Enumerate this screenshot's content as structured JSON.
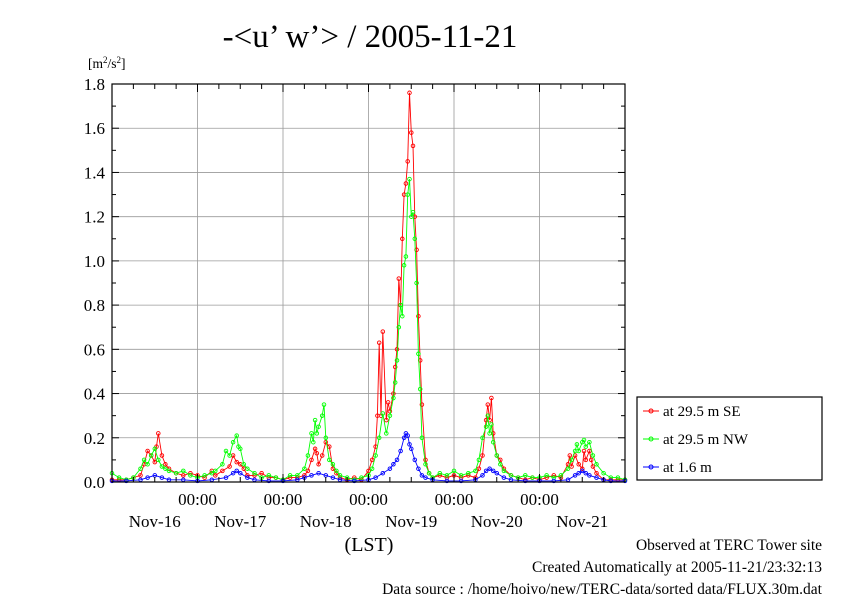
{
  "chart_data": {
    "type": "line",
    "title": "-<u’ w’> / 2005-11-21",
    "ylabel_unit": {
      "prefix": "[m",
      "sup1": "2",
      "mid": "/s",
      "sup2": "2",
      "suffix": "]"
    },
    "xlabel": "(LST)",
    "ylim": [
      0,
      1.8
    ],
    "yticks": [
      "0.0",
      "0.2",
      "0.4",
      "0.6",
      "0.8",
      "1.0",
      "1.2",
      "1.4",
      "1.6",
      "1.8"
    ],
    "xlim_hours": [
      0,
      144
    ],
    "x_midnight_labels": [
      "00:00",
      "00:00",
      "00:00",
      "00:00",
      "00:00"
    ],
    "x_midnight_hours": [
      24,
      48,
      72,
      96,
      120
    ],
    "x_day_labels": [
      "Nov-16",
      "Nov-17",
      "Nov-18",
      "Nov-19",
      "Nov-20",
      "Nov-21"
    ],
    "x_day_hours": [
      12,
      36,
      60,
      84,
      108,
      132
    ],
    "grid": true,
    "legend_position": "right",
    "series": [
      {
        "name": "at 29.5 m SE",
        "color": "#ff0000",
        "points": [
          [
            0,
            0.01
          ],
          [
            2,
            0.01
          ],
          [
            4,
            0.01
          ],
          [
            6,
            0.02
          ],
          [
            8,
            0.03
          ],
          [
            9,
            0.08
          ],
          [
            10,
            0.14
          ],
          [
            11,
            0.12
          ],
          [
            12,
            0.09
          ],
          [
            12.5,
            0.16
          ],
          [
            13,
            0.22
          ],
          [
            14,
            0.12
          ],
          [
            15,
            0.08
          ],
          [
            16,
            0.06
          ],
          [
            18,
            0.04
          ],
          [
            20,
            0.03
          ],
          [
            22,
            0.04
          ],
          [
            24,
            0.03
          ],
          [
            26,
            0.02
          ],
          [
            28,
            0.05
          ],
          [
            29,
            0.03
          ],
          [
            31,
            0.05
          ],
          [
            33,
            0.07
          ],
          [
            34,
            0.12
          ],
          [
            35,
            0.09
          ],
          [
            36,
            0.08
          ],
          [
            37,
            0.06
          ],
          [
            38,
            0.03
          ],
          [
            40,
            0.03
          ],
          [
            42,
            0.04
          ],
          [
            44,
            0.02
          ],
          [
            46,
            0.02
          ],
          [
            48,
            0.01
          ],
          [
            50,
            0.02
          ],
          [
            52,
            0.02
          ],
          [
            54,
            0.03
          ],
          [
            55,
            0.05
          ],
          [
            56,
            0.1
          ],
          [
            57,
            0.15
          ],
          [
            57.5,
            0.13
          ],
          [
            58,
            0.08
          ],
          [
            59,
            0.12
          ],
          [
            60,
            0.18
          ],
          [
            61,
            0.16
          ],
          [
            62,
            0.06
          ],
          [
            63,
            0.04
          ],
          [
            64,
            0.02
          ],
          [
            66,
            0.01
          ],
          [
            68,
            0.02
          ],
          [
            70,
            0.01
          ],
          [
            72,
            0.05
          ],
          [
            73,
            0.1
          ],
          [
            74,
            0.16
          ],
          [
            74.5,
            0.3
          ],
          [
            75,
            0.63
          ],
          [
            75.5,
            0.3
          ],
          [
            76,
            0.68
          ],
          [
            77,
            0.28
          ],
          [
            77.5,
            0.36
          ],
          [
            78,
            0.32
          ],
          [
            79,
            0.4
          ],
          [
            79.5,
            0.52
          ],
          [
            80,
            0.6
          ],
          [
            80.5,
            0.92
          ],
          [
            81,
            0.8
          ],
          [
            81.5,
            1.1
          ],
          [
            82,
            1.3
          ],
          [
            82.5,
            1.35
          ],
          [
            83,
            1.45
          ],
          [
            83.5,
            1.76
          ],
          [
            84,
            1.58
          ],
          [
            84.5,
            1.52
          ],
          [
            85,
            1.2
          ],
          [
            85.5,
            1.05
          ],
          [
            86,
            0.75
          ],
          [
            86.5,
            0.55
          ],
          [
            87,
            0.35
          ],
          [
            88,
            0.1
          ],
          [
            89,
            0.04
          ],
          [
            90,
            0.02
          ],
          [
            92,
            0.03
          ],
          [
            94,
            0.02
          ],
          [
            96,
            0.03
          ],
          [
            98,
            0.02
          ],
          [
            100,
            0.03
          ],
          [
            102,
            0.02
          ],
          [
            103,
            0.06
          ],
          [
            104,
            0.12
          ],
          [
            105,
            0.28
          ],
          [
            105.5,
            0.35
          ],
          [
            106,
            0.28
          ],
          [
            106.5,
            0.38
          ],
          [
            107,
            0.22
          ],
          [
            108,
            0.12
          ],
          [
            109,
            0.1
          ],
          [
            110,
            0.06
          ],
          [
            112,
            0.03
          ],
          [
            114,
            0.02
          ],
          [
            116,
            0.01
          ],
          [
            118,
            0.02
          ],
          [
            120,
            0.01
          ],
          [
            122,
            0.02
          ],
          [
            124,
            0.03
          ],
          [
            126,
            0.02
          ],
          [
            128,
            0.08
          ],
          [
            128.5,
            0.12
          ],
          [
            129,
            0.07
          ],
          [
            130,
            0.12
          ],
          [
            131,
            0.08
          ],
          [
            132,
            0.06
          ],
          [
            132.5,
            0.14
          ],
          [
            133,
            0.1
          ],
          [
            134,
            0.14
          ],
          [
            134.5,
            0.1
          ],
          [
            135,
            0.07
          ],
          [
            136,
            0.04
          ],
          [
            138,
            0.01
          ],
          [
            140,
            0.01
          ],
          [
            142,
            0.01
          ],
          [
            144,
            0.01
          ]
        ]
      },
      {
        "name": "at 29.5 m NW",
        "color": "#00ff00",
        "points": [
          [
            0,
            0.04
          ],
          [
            2,
            0.02
          ],
          [
            4,
            0.01
          ],
          [
            6,
            0.02
          ],
          [
            8,
            0.06
          ],
          [
            9,
            0.1
          ],
          [
            10,
            0.08
          ],
          [
            11,
            0.12
          ],
          [
            12,
            0.15
          ],
          [
            13,
            0.1
          ],
          [
            14,
            0.07
          ],
          [
            15,
            0.06
          ],
          [
            16,
            0.05
          ],
          [
            18,
            0.04
          ],
          [
            20,
            0.05
          ],
          [
            22,
            0.03
          ],
          [
            24,
            0.02
          ],
          [
            26,
            0.03
          ],
          [
            28,
            0.04
          ],
          [
            29,
            0.05
          ],
          [
            31,
            0.08
          ],
          [
            32,
            0.14
          ],
          [
            33,
            0.12
          ],
          [
            34,
            0.18
          ],
          [
            35,
            0.21
          ],
          [
            35.5,
            0.16
          ],
          [
            36,
            0.15
          ],
          [
            37,
            0.08
          ],
          [
            38,
            0.06
          ],
          [
            40,
            0.04
          ],
          [
            42,
            0.02
          ],
          [
            44,
            0.03
          ],
          [
            46,
            0.02
          ],
          [
            48,
            0.01
          ],
          [
            50,
            0.03
          ],
          [
            52,
            0.03
          ],
          [
            54,
            0.06
          ],
          [
            55,
            0.12
          ],
          [
            56,
            0.22
          ],
          [
            56.5,
            0.18
          ],
          [
            57,
            0.28
          ],
          [
            57.5,
            0.22
          ],
          [
            58,
            0.25
          ],
          [
            59,
            0.3
          ],
          [
            59.5,
            0.35
          ],
          [
            60,
            0.2
          ],
          [
            61,
            0.1
          ],
          [
            62,
            0.08
          ],
          [
            63,
            0.05
          ],
          [
            64,
            0.03
          ],
          [
            66,
            0.02
          ],
          [
            68,
            0.01
          ],
          [
            70,
            0.02
          ],
          [
            72,
            0.03
          ],
          [
            73,
            0.06
          ],
          [
            74,
            0.12
          ],
          [
            75,
            0.2
          ],
          [
            76,
            0.31
          ],
          [
            77,
            0.22
          ],
          [
            78,
            0.3
          ],
          [
            79,
            0.38
          ],
          [
            79.5,
            0.45
          ],
          [
            80,
            0.55
          ],
          [
            80.5,
            0.7
          ],
          [
            81,
            0.8
          ],
          [
            81.5,
            0.75
          ],
          [
            82,
            0.98
          ],
          [
            82.5,
            1.02
          ],
          [
            83,
            1.3
          ],
          [
            83.5,
            1.37
          ],
          [
            84,
            1.2
          ],
          [
            84.5,
            1.22
          ],
          [
            85,
            1.1
          ],
          [
            85.5,
            0.9
          ],
          [
            86,
            0.58
          ],
          [
            86.5,
            0.42
          ],
          [
            87,
            0.2
          ],
          [
            88,
            0.08
          ],
          [
            89,
            0.04
          ],
          [
            90,
            0.02
          ],
          [
            92,
            0.04
          ],
          [
            94,
            0.03
          ],
          [
            96,
            0.05
          ],
          [
            98,
            0.03
          ],
          [
            100,
            0.04
          ],
          [
            102,
            0.05
          ],
          [
            103,
            0.1
          ],
          [
            104,
            0.2
          ],
          [
            105,
            0.25
          ],
          [
            105.5,
            0.3
          ],
          [
            106,
            0.22
          ],
          [
            106.5,
            0.26
          ],
          [
            107,
            0.18
          ],
          [
            108,
            0.12
          ],
          [
            109,
            0.08
          ],
          [
            110,
            0.05
          ],
          [
            112,
            0.03
          ],
          [
            114,
            0.02
          ],
          [
            116,
            0.03
          ],
          [
            118,
            0.02
          ],
          [
            120,
            0.02
          ],
          [
            122,
            0.03
          ],
          [
            124,
            0.02
          ],
          [
            126,
            0.03
          ],
          [
            128,
            0.06
          ],
          [
            129,
            0.1
          ],
          [
            130,
            0.14
          ],
          [
            130.5,
            0.17
          ],
          [
            131,
            0.14
          ],
          [
            132,
            0.18
          ],
          [
            132.5,
            0.19
          ],
          [
            133,
            0.16
          ],
          [
            134,
            0.18
          ],
          [
            135,
            0.12
          ],
          [
            136,
            0.08
          ],
          [
            138,
            0.04
          ],
          [
            140,
            0.02
          ],
          [
            142,
            0.02
          ],
          [
            144,
            0.01
          ]
        ]
      },
      {
        "name": "at 1.6 m",
        "color": "#0000ff",
        "points": [
          [
            0,
            0.005
          ],
          [
            4,
            0.005
          ],
          [
            8,
            0.01
          ],
          [
            10,
            0.02
          ],
          [
            12,
            0.03
          ],
          [
            14,
            0.02
          ],
          [
            16,
            0.01
          ],
          [
            20,
            0.01
          ],
          [
            24,
            0.005
          ],
          [
            28,
            0.01
          ],
          [
            32,
            0.02
          ],
          [
            34,
            0.04
          ],
          [
            35,
            0.05
          ],
          [
            36,
            0.04
          ],
          [
            38,
            0.02
          ],
          [
            40,
            0.01
          ],
          [
            44,
            0.005
          ],
          [
            48,
            0.005
          ],
          [
            52,
            0.01
          ],
          [
            54,
            0.02
          ],
          [
            56,
            0.03
          ],
          [
            58,
            0.04
          ],
          [
            60,
            0.03
          ],
          [
            62,
            0.02
          ],
          [
            64,
            0.01
          ],
          [
            68,
            0.005
          ],
          [
            72,
            0.01
          ],
          [
            74,
            0.02
          ],
          [
            76,
            0.04
          ],
          [
            78,
            0.06
          ],
          [
            79,
            0.08
          ],
          [
            80,
            0.1
          ],
          [
            81,
            0.14
          ],
          [
            82,
            0.2
          ],
          [
            82.5,
            0.22
          ],
          [
            83,
            0.21
          ],
          [
            83.5,
            0.17
          ],
          [
            84,
            0.15
          ],
          [
            85,
            0.1
          ],
          [
            86,
            0.06
          ],
          [
            87,
            0.03
          ],
          [
            88,
            0.02
          ],
          [
            90,
            0.01
          ],
          [
            94,
            0.005
          ],
          [
            98,
            0.005
          ],
          [
            102,
            0.01
          ],
          [
            104,
            0.03
          ],
          [
            105,
            0.05
          ],
          [
            106,
            0.06
          ],
          [
            107,
            0.05
          ],
          [
            108,
            0.04
          ],
          [
            110,
            0.02
          ],
          [
            112,
            0.01
          ],
          [
            116,
            0.005
          ],
          [
            120,
            0.005
          ],
          [
            124,
            0.005
          ],
          [
            128,
            0.01
          ],
          [
            130,
            0.03
          ],
          [
            131,
            0.04
          ],
          [
            132,
            0.05
          ],
          [
            133,
            0.04
          ],
          [
            134,
            0.03
          ],
          [
            136,
            0.02
          ],
          [
            138,
            0.01
          ],
          [
            140,
            0.005
          ],
          [
            144,
            0.005
          ]
        ]
      }
    ]
  },
  "footer": {
    "line1": "Observed at TERC Tower site",
    "line2": "Created Automatically at 2005-11-21/23:32:13",
    "line3": "Data source : /home/hoivo/new/TERC-data/sorted  data/FLUX.30m.dat"
  }
}
